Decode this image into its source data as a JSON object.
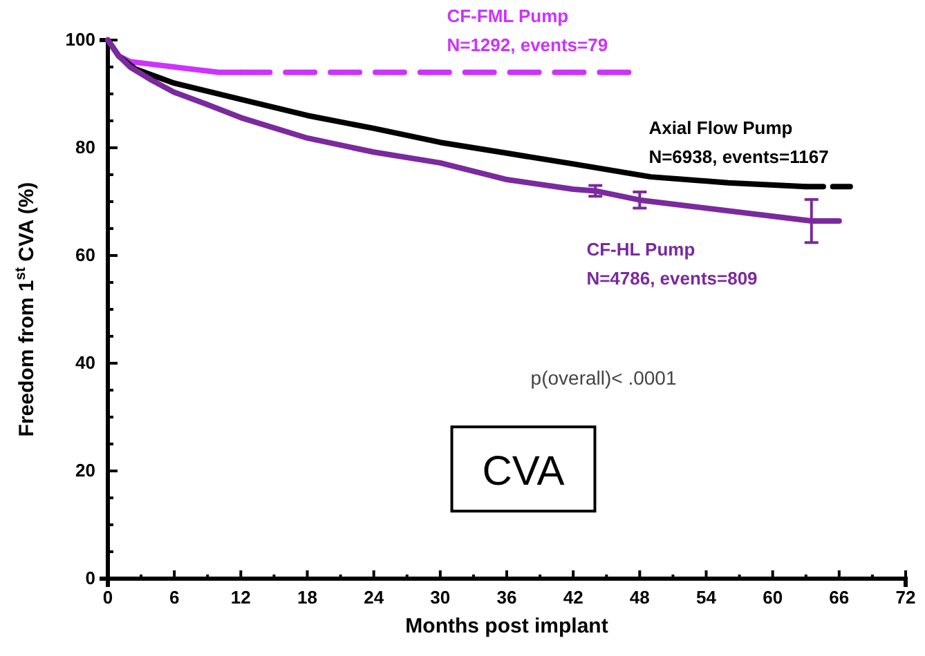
{
  "chart_data": {
    "type": "line",
    "xlabel": "Months post implant",
    "ylabel": "Freedom from 1$^{st}$ CVA (%)",
    "xlim": [
      0,
      72
    ],
    "xticks": [
      0,
      {
        "value": 3,
        "label": null
      },
      6,
      {
        "value": 9,
        "label": null
      },
      12,
      {
        "value": 15,
        "label": null
      },
      18,
      {
        "value": 21,
        "label": null
      },
      24,
      {
        "value": 27,
        "label": null
      },
      30,
      {
        "value": 33,
        "label": null
      },
      36,
      {
        "value": 39,
        "label": null
      },
      42,
      {
        "value": 45,
        "label": null
      },
      48,
      {
        "value": 51,
        "label": null
      },
      54,
      {
        "value": 57,
        "label": null
      },
      60,
      {
        "value": 63,
        "label": null
      },
      66,
      {
        "value": 69,
        "label": null
      },
      72
    ],
    "ylim": [
      0,
      100
    ],
    "yticks": [
      0,
      {
        "value": 5,
        "label": null
      },
      {
        "value": 10,
        "label": null
      },
      {
        "value": 15,
        "label": null
      },
      20,
      {
        "value": 25,
        "label": null
      },
      {
        "value": 30,
        "label": null
      },
      {
        "value": 35,
        "label": null
      },
      40,
      {
        "value": 45,
        "label": null
      },
      {
        "value": 50,
        "label": null
      },
      {
        "value": 55,
        "label": null
      },
      60,
      {
        "value": 65,
        "label": null
      },
      {
        "value": 70,
        "label": null
      },
      {
        "value": 75,
        "label": null
      },
      80,
      {
        "value": 85,
        "label": null
      },
      {
        "value": 90,
        "label": null
      },
      {
        "value": 95,
        "label": null
      },
      100
    ],
    "grid": false,
    "series": [
      {
        "name": "CF-FML Pump",
        "color": "#cc33ff",
        "line_style": "solid",
        "x": [
          0,
          1,
          2,
          4,
          6,
          8,
          10,
          12
        ],
        "values": [
          100,
          97,
          96,
          95.5,
          95,
          94.5,
          94,
          94
        ]
      },
      {
        "color": "#cc33ff",
        "line_style": "dashed",
        "x": [
          12,
          47
        ],
        "values": [
          94,
          94
        ]
      },
      {
        "name": "Axial Flow Pump",
        "color": "#000000",
        "line_style": "solid",
        "x": [
          0,
          1,
          2.5,
          6,
          12,
          18,
          24,
          30,
          36,
          42,
          49,
          56,
          63
        ],
        "values": [
          100,
          97,
          94.6,
          92,
          89,
          86,
          83.6,
          81,
          79,
          77,
          74.6,
          73.5,
          72.8
        ]
      },
      {
        "color": "#000000",
        "line_style": "dashed",
        "x": [
          63,
          67
        ],
        "values": [
          72.8,
          72.8
        ]
      },
      {
        "name": "CF-HL Pump",
        "color": "#7a2a9e",
        "line_style": "solid",
        "x": [
          0,
          1,
          2,
          4,
          6,
          9,
          12,
          18,
          24,
          30,
          36,
          42,
          44,
          48,
          63.5,
          66
        ],
        "values": [
          100,
          97,
          95,
          92.5,
          90.3,
          88,
          85.6,
          81.8,
          79.2,
          77.2,
          74.1,
          72.3,
          72,
          70.3,
          66.4,
          66.4
        ],
        "errors": [
          null,
          null,
          null,
          null,
          null,
          null,
          null,
          null,
          null,
          null,
          null,
          null,
          1,
          1.5,
          4,
          null
        ]
      }
    ],
    "annotations": [
      "N=1292, events=79",
      "N=6938, events=1167",
      "N=4786, events=809",
      "p(overall)< .0001",
      "CVA"
    ]
  }
}
